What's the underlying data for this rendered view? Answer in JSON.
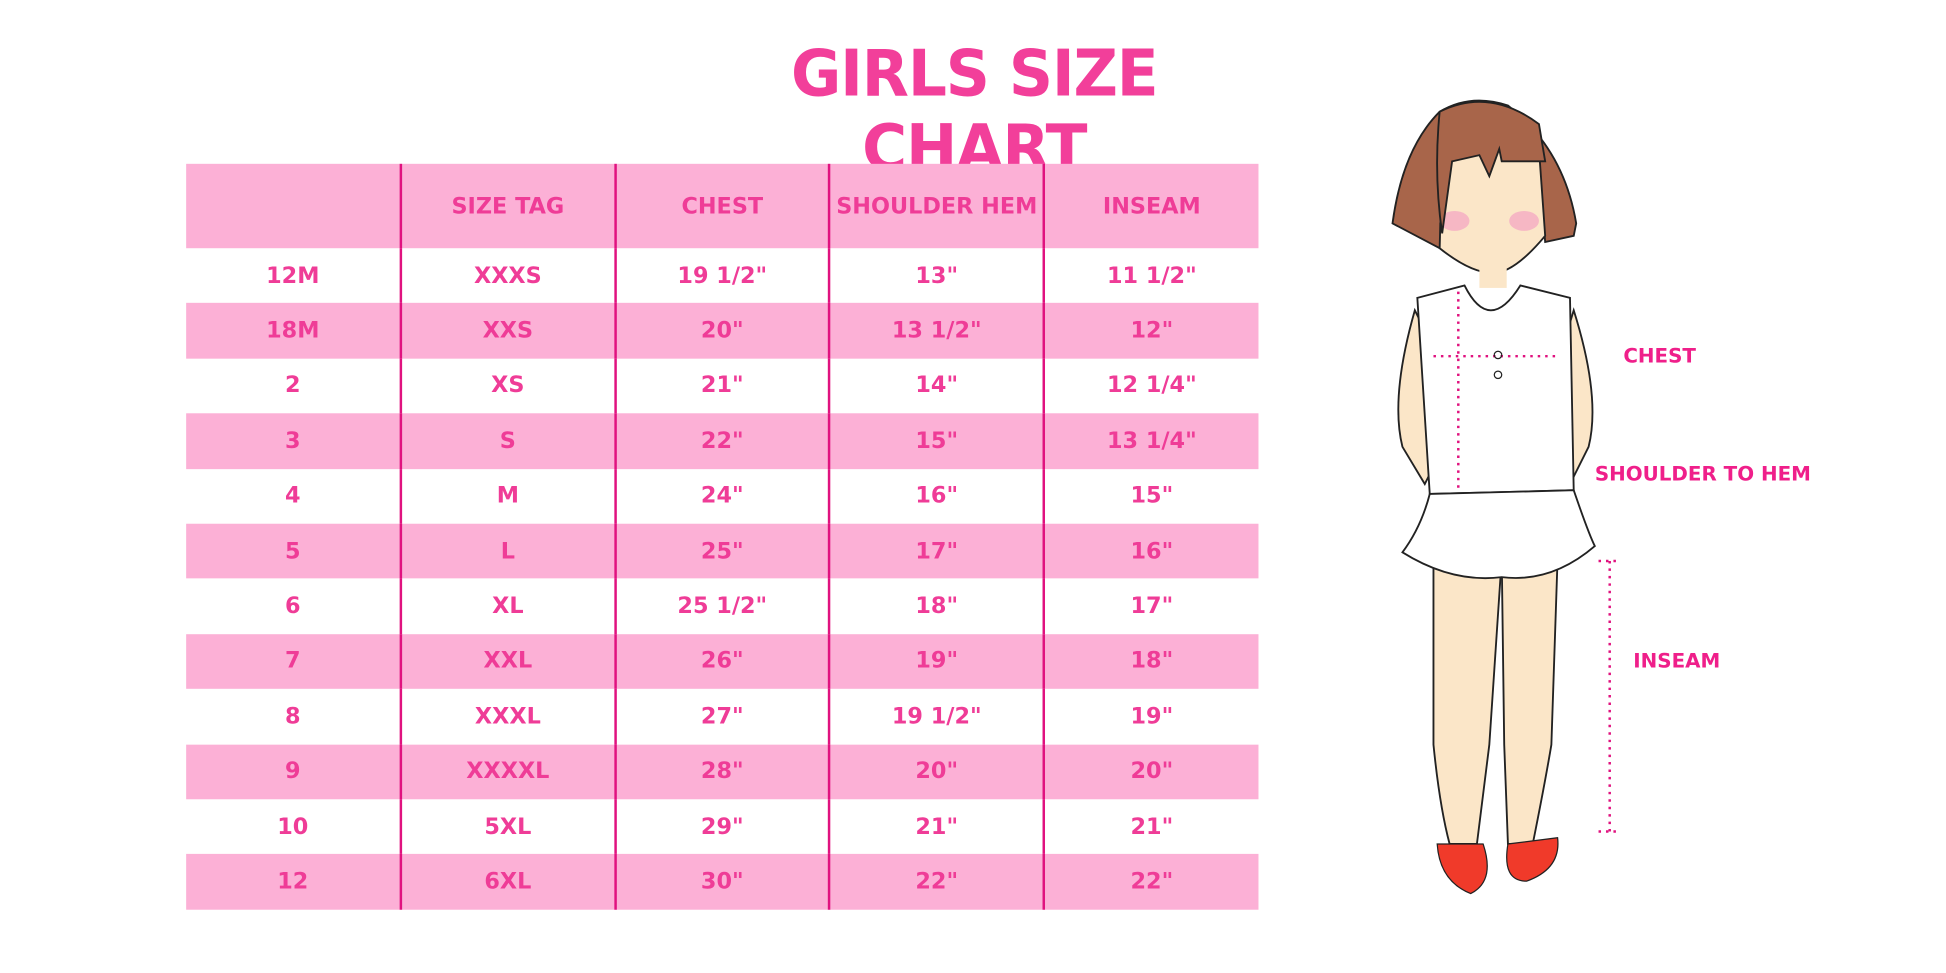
{
  "title": "GIRLS SIZE CHART",
  "table": {
    "headers": [
      "",
      "SIZE TAG",
      "CHEST",
      "SHOULDER HEM",
      "INSEAM"
    ],
    "rows": [
      [
        "12M",
        "XXXS",
        "19 1/2\"",
        "13\"",
        "11 1/2\""
      ],
      [
        "18M",
        "XXS",
        "20\"",
        "13 1/2\"",
        "12\""
      ],
      [
        "2",
        "XS",
        "21\"",
        "14\"",
        "12 1/4\""
      ],
      [
        "3",
        "S",
        "22\"",
        "15\"",
        "13 1/4\""
      ],
      [
        "4",
        "M",
        "24\"",
        "16\"",
        "15\""
      ],
      [
        "5",
        "L",
        "25\"",
        "17\"",
        "16\""
      ],
      [
        "6",
        "XL",
        "25 1/2\"",
        "18\"",
        "17\""
      ],
      [
        "7",
        "XXL",
        "26\"",
        "19\"",
        "18\""
      ],
      [
        "8",
        "XXXL",
        "27\"",
        "19 1/2\"",
        "19\""
      ],
      [
        "9",
        "XXXXL",
        "28\"",
        "20\"",
        "20\""
      ],
      [
        "10",
        "5XL",
        "29\"",
        "21\"",
        "21\""
      ],
      [
        "12",
        "6XL",
        "30\"",
        "22\"",
        "22\""
      ]
    ]
  },
  "figure": {
    "labels": {
      "chest": "CHEST",
      "shoulder": "SHOULDER TO HEM",
      "inseam": "INSEAM"
    }
  },
  "colors": {
    "accent": "#ef3c97",
    "stripe": "#fcb0d6",
    "divider": "#e0127f"
  }
}
